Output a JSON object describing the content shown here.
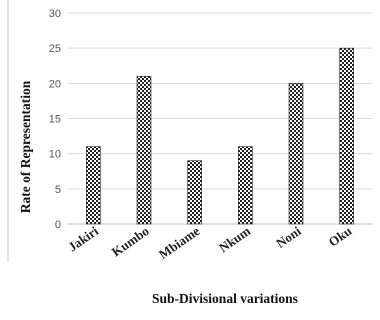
{
  "chart_data": {
    "type": "bar",
    "title": "",
    "xlabel": "Sub-Divisional variations",
    "ylabel": "Rate of Representation",
    "categories": [
      "Jakiri",
      "Kumbo",
      "Mbiame",
      "Nkum",
      "Noni",
      "Oku"
    ],
    "values": [
      11,
      21,
      9,
      11,
      20,
      25
    ],
    "ylim": [
      0,
      30
    ],
    "yticks": [
      0,
      5,
      10,
      15,
      20,
      25,
      30
    ],
    "grid": true,
    "legend": "none",
    "bar_pattern": "checkered",
    "colors": {
      "bar_dark": "#222222",
      "bar_light": "#ffffff",
      "grid": "#d9d9d9"
    }
  }
}
